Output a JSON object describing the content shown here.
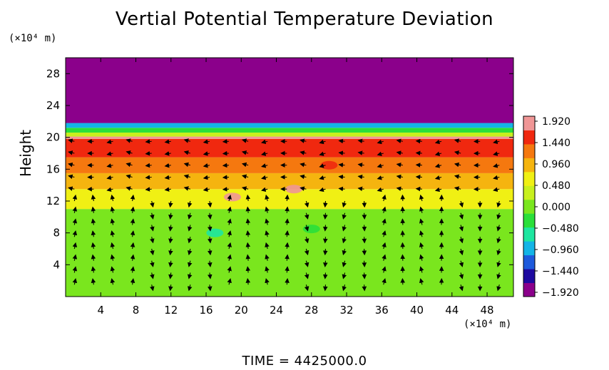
{
  "title": "Vertial Potential Temperature Deviation",
  "footer": "TIME  =  4425000.0",
  "chart_data": {
    "type": "heatmap",
    "title": "Vertial Potential Temperature Deviation",
    "xlabel": "",
    "ylabel": "Height",
    "x_unit": "(×10⁴ m)",
    "y_unit": "(×10⁴ m)",
    "xlim": [
      0,
      51
    ],
    "ylim": [
      0,
      30
    ],
    "xticks": [
      4,
      8,
      12,
      16,
      20,
      24,
      28,
      32,
      36,
      40,
      44,
      48
    ],
    "yticks": [
      4,
      8,
      12,
      16,
      20,
      24,
      28
    ],
    "colorbar": {
      "labels": [
        "1.920",
        "1.440",
        "0.960",
        "0.480",
        "0.000",
        "−0.480",
        "−0.960",
        "−1.440",
        "−1.920"
      ],
      "min": -1.92,
      "max": 1.92,
      "colors": [
        "#8b008b",
        "#1e0aa0",
        "#1e5adc",
        "#14b4e6",
        "#1ee6a0",
        "#2adf3a",
        "#7ae61e",
        "#c8f01e",
        "#f0f014",
        "#f5b40f",
        "#f5780f",
        "#f0280f",
        "#f09696"
      ]
    },
    "bands": [
      {
        "from": 0,
        "to": 11,
        "value": 0.0
      },
      {
        "from": 11,
        "to": 13.5,
        "value": 0.55
      },
      {
        "from": 13.5,
        "to": 15.5,
        "value": 0.85
      },
      {
        "from": 15.5,
        "to": 17.5,
        "value": 1.15
      },
      {
        "from": 17.5,
        "to": 19.8,
        "value": 1.5
      },
      {
        "from": 19.8,
        "to": 20.1,
        "value": 1.9
      },
      {
        "from": 20.1,
        "to": 20.6,
        "value": 0.3
      },
      {
        "from": 20.6,
        "to": 21.2,
        "value": -0.3
      },
      {
        "from": 21.2,
        "to": 21.8,
        "value": -1.0
      },
      {
        "from": 21.8,
        "to": 30,
        "value": -1.92
      }
    ],
    "features": [
      {
        "x": 19,
        "y": 12.5,
        "value": 1.7
      },
      {
        "x": 26,
        "y": 13.5,
        "value": 1.8
      },
      {
        "x": 30,
        "y": 16.5,
        "value": 1.6
      },
      {
        "x": 17,
        "y": 8,
        "value": -0.45
      },
      {
        "x": 28,
        "y": 8.5,
        "value": -0.4
      }
    ]
  }
}
